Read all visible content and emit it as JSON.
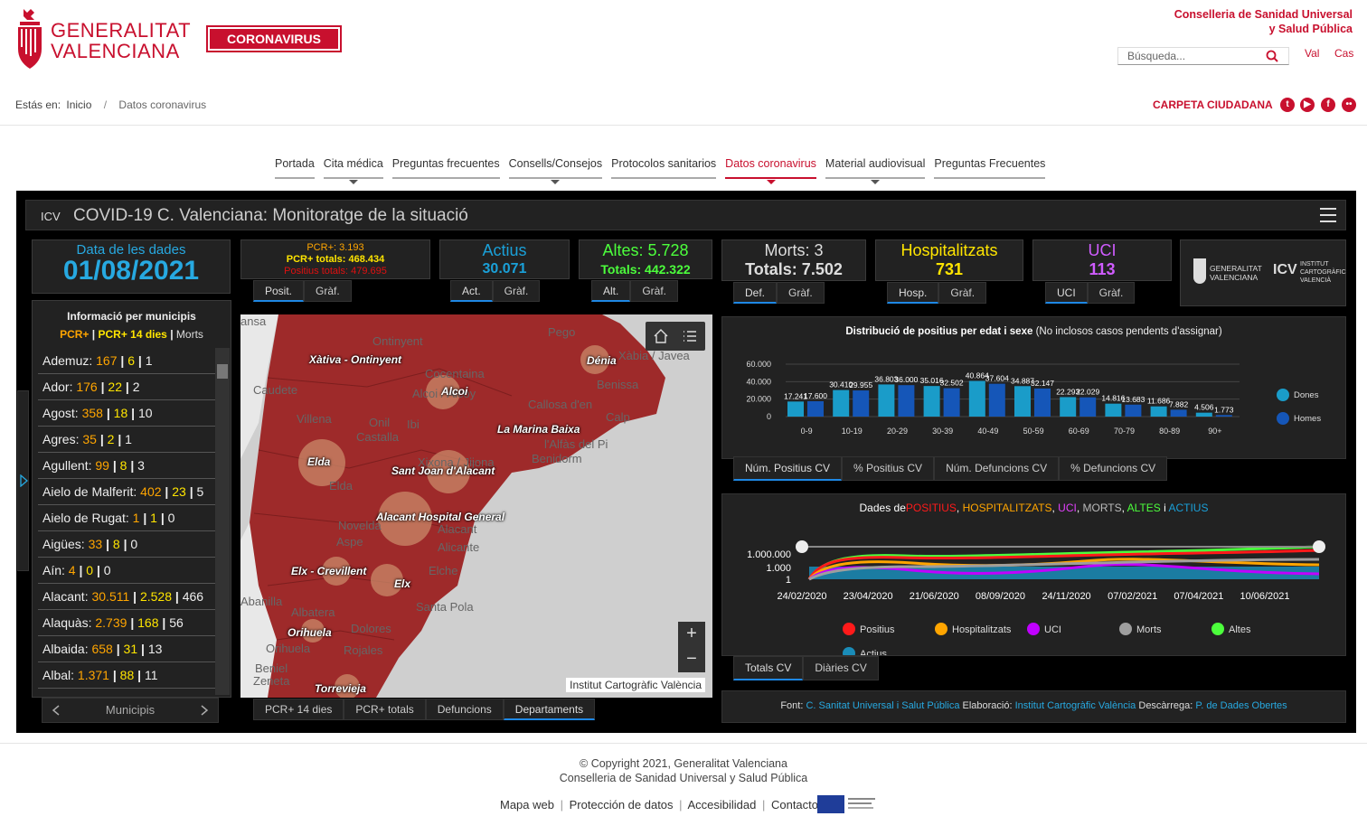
{
  "header": {
    "org_line1": "GENERALITAT",
    "org_line2": "VALENCIANA",
    "coronavirus_btn": "CORONAVIRUS",
    "conselleria_line1": "Conselleria de Sanidad Universal",
    "conselleria_line2": "y Salud Pública",
    "search_placeholder": "Búsqueda...",
    "lang_val": "Val",
    "lang_cas": "Cas",
    "breadcrumb_prefix": "Estás en:",
    "breadcrumb_home": "Inicio",
    "breadcrumb_sep": "/",
    "breadcrumb_current": "Datos coronavirus",
    "carpeta": "CARPETA CIUDADANA"
  },
  "nav": [
    "Portada",
    "Cita médica",
    "Preguntas frecuentes",
    "Consells/Consejos",
    "Protocolos sanitarios",
    "Datos coronavirus",
    "Material audiovisual",
    "Preguntas Frecuentes"
  ],
  "dashboard": {
    "title": "COVID-19 C. Valenciana: Monitoratge de la situació",
    "date_label": "Data de les dades",
    "date_value": "01/08/2021",
    "pcr": {
      "line1": "PCR+: 3.193",
      "line2": "PCR+ totals: 468.434",
      "line3": "Positius totals: 479.695",
      "tab1": "Posit.",
      "tab2": "Gràf."
    },
    "actius": {
      "title": "Actius",
      "value": "30.071",
      "tab1": "Act.",
      "tab2": "Gràf."
    },
    "altes": {
      "title": "Altes: 5.728",
      "value": "Totals: 442.322",
      "tab1": "Alt.",
      "tab2": "Gràf."
    },
    "morts": {
      "title": "Morts: 3",
      "value": "Totals: 7.502",
      "tab1": "Def.",
      "tab2": "Gràf."
    },
    "hosp": {
      "title": "Hospitalitzats",
      "value": "731",
      "tab1": "Hosp.",
      "tab2": "Gràf."
    },
    "uci": {
      "title": "UCI",
      "value": "113",
      "tab1": "UCI",
      "tab2": "Gràf."
    },
    "logo1_line1": "GENERALITAT",
    "logo1_line2": "VALENCIANA",
    "logo2_line1": "INSTITUT",
    "logo2_line2": "CARTOGRÀFIC",
    "logo2_line3": "VALENCIÀ"
  },
  "municipis": {
    "header": "Informació per municipis",
    "legend_pcr": "PCR+",
    "legend_pcr14": "PCR+ 14 dies",
    "legend_morts": "Morts",
    "sep": "|",
    "rows": [
      {
        "name": "Ademuz:",
        "a": "167",
        "b": "6",
        "c": "1"
      },
      {
        "name": "Ador:",
        "a": "176",
        "b": "22",
        "c": "2"
      },
      {
        "name": "Agost:",
        "a": "358",
        "b": "18",
        "c": "10"
      },
      {
        "name": "Agres:",
        "a": "35",
        "b": "2",
        "c": "1"
      },
      {
        "name": "Agullent:",
        "a": "99",
        "b": "8",
        "c": "3"
      },
      {
        "name": "Aielo de Malferit:",
        "a": "402",
        "b": "23",
        "c": "5"
      },
      {
        "name": "Aielo de Rugat:",
        "a": "1",
        "b": "1",
        "c": "0"
      },
      {
        "name": "Aigües:",
        "a": "33",
        "b": "8",
        "c": "0"
      },
      {
        "name": "Aín:",
        "a": "4",
        "b": "0",
        "c": "0"
      },
      {
        "name": "Alacant:",
        "a": "30.511",
        "b": "2.528",
        "c": "466"
      },
      {
        "name": "Alaquàs:",
        "a": "2.739",
        "b": "168",
        "c": "56"
      },
      {
        "name": "Albaida:",
        "a": "658",
        "b": "31",
        "c": "13"
      },
      {
        "name": "Albal:",
        "a": "1.371",
        "b": "88",
        "c": "11"
      }
    ],
    "footer": "Municipis"
  },
  "map": {
    "labels": [
      "Xàtiva - Ontinyent",
      "Dénia",
      "Alcoi",
      "La Marina Baixa",
      "Elda",
      "Sant Joan d'Alacant",
      "Alacant Hospital General",
      "Elx - Crevillent",
      "Elx",
      "Orihuela",
      "Torrevieja"
    ],
    "geo_labels": [
      "ansa",
      "Ontinyent",
      "Pego",
      "Xàbia / Javea",
      "Caudete",
      "Cocentaina",
      "Alcoi / Alcoy",
      "Benissa",
      "Callosa d'en",
      "Calp",
      "Villena",
      "Onil",
      "Ibi",
      "Castalla",
      "l'Alfàs del Pi",
      "Xixona / Jijona",
      "Benidorm",
      "Elda",
      "Novelda",
      "Aspe",
      "Alacant",
      "Alicante",
      "Elche",
      "Abanilla",
      "Albatera",
      "Santa Pola",
      "Dolores",
      "Orihuela",
      "Rojales",
      "Beniel",
      "Zeneta"
    ],
    "credit": "Institut Cartogràfic València",
    "tabs": [
      "PCR+ 14 dies",
      "PCR+ totals",
      "Defuncions",
      "Departaments"
    ]
  },
  "bar_chart": {
    "title": "Distribució de positius per edat i sexe",
    "title_note": "(No inclosos casos pendents d'assignar)",
    "tabs": [
      "Núm. Positius CV",
      "% Positius CV",
      "Núm. Defuncions CV",
      "% Defuncions CV"
    ]
  },
  "chart_data": [
    {
      "type": "bar",
      "categories": [
        "0-9",
        "10-19",
        "20-29",
        "30-39",
        "40-49",
        "50-59",
        "60-69",
        "70-79",
        "80-89",
        "90+"
      ],
      "series": [
        {
          "name": "Dones",
          "color": "#1a9cc9",
          "values": [
            17241,
            30410,
            36803,
            35016,
            40864,
            34887,
            22293,
            14816,
            11686,
            4506
          ]
        },
        {
          "name": "Homes",
          "color": "#1556b8",
          "values": [
            17600,
            29955,
            36000,
            32502,
            37604,
            32147,
            22029,
            13683,
            7882,
            1773
          ]
        }
      ],
      "value_labels": [
        [
          "17.241",
          "30.410",
          "36.803",
          "35.016",
          "40.864",
          "34.887",
          "22.293",
          "14.816",
          "11.686",
          "4.506"
        ],
        [
          "17.600",
          "29.955",
          "36.000",
          "32.502",
          "37.604",
          "32.147",
          "22.029",
          "13.683",
          "7.882",
          "1.773"
        ]
      ],
      "ylim": [
        0,
        60000
      ],
      "yticks": [
        "0",
        "20.000",
        "40.000",
        "60.000"
      ],
      "ytick_values": [
        0,
        20000,
        40000,
        60000
      ],
      "grid": true,
      "legend": "right"
    },
    {
      "type": "line",
      "title_prefix": "Dades de",
      "title_parts": [
        {
          "text": "POSITIUS",
          "color": "#ff1a1a"
        },
        {
          "text": ",",
          "color": "#ffffff"
        },
        {
          "text": "HOSPITALITZATS",
          "color": "#ffa500"
        },
        {
          "text": ",",
          "color": "#ffffff"
        },
        {
          "text": "UCI",
          "color": "#e040fb"
        },
        {
          "text": ",",
          "color": "#ffffff"
        },
        {
          "text": "MORTS",
          "color": "#bbbbbb"
        },
        {
          "text": ",",
          "color": "#ffffff"
        },
        {
          "text": "ALTES",
          "color": "#4cff3c"
        },
        {
          "text": "i",
          "color": "#ffffff"
        },
        {
          "text": "ACTIUS",
          "color": "#1aa0d8"
        }
      ],
      "x_ticks": [
        "24/02/2020",
        "23/04/2020",
        "21/06/2020",
        "08/09/2020",
        "24/11/2020",
        "07/02/2021",
        "07/04/2021",
        "10/06/2021"
      ],
      "y_ticks": [
        "1.000.000",
        "1.000",
        "1"
      ],
      "y_scale": "log",
      "series": [
        {
          "name": "Positius",
          "color": "#ff1a1a"
        },
        {
          "name": "Hospitalitzats",
          "color": "#ffa500"
        },
        {
          "name": "UCI",
          "color": "#c000ff"
        },
        {
          "name": "Morts",
          "color": "#9e9e9e"
        },
        {
          "name": "Altes",
          "color": "#4cff3c"
        },
        {
          "name": "Actius",
          "color": "#1a8cb8"
        }
      ],
      "tabs": [
        "Totals CV",
        "Diàries CV"
      ]
    }
  ],
  "source": {
    "font_label": "Font:",
    "font_link": "C. Sanitat Universal i Salut Pública",
    "elab_label": "Elaboració:",
    "elab_link": "Institut Cartogràfic València",
    "desc_label": "Descàrrega:",
    "desc_link": "P. de Dades Obertes"
  },
  "footer": {
    "copy1": "© Copyright 2021, Generalitat Valenciana",
    "copy2": "Conselleria de Sanidad Universal y Salud Pública",
    "links": [
      "Mapa web",
      "Protección de datos",
      "Accesibilidad",
      "Contacto"
    ]
  },
  "colors": {
    "brand_red": "#c8102e",
    "dash_bg": "#000000",
    "accent_blue": "#27a9e1"
  }
}
